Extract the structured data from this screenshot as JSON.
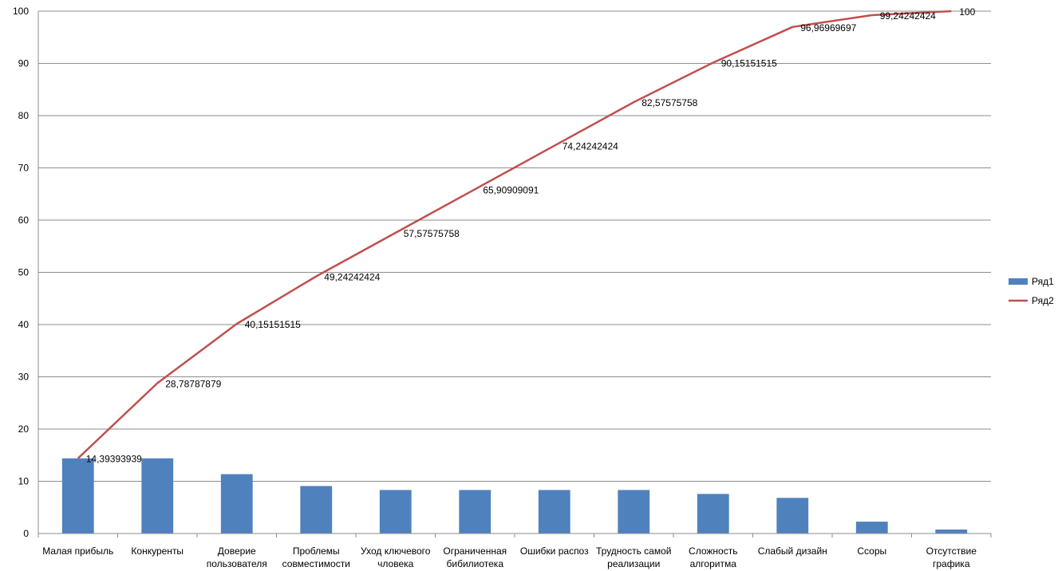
{
  "chart_data": {
    "type": "bar",
    "categories": [
      [
        "Малая прибыль"
      ],
      [
        "Конкуренты"
      ],
      [
        "Доверие",
        "пользователя"
      ],
      [
        "Проблемы",
        "совместимости"
      ],
      [
        "Уход ключевого",
        "чловека"
      ],
      [
        "Ограниченная",
        "бибилиотека"
      ],
      [
        "Ошибки распоз"
      ],
      [
        "Трудность самой",
        "реализации"
      ],
      [
        "Сложность",
        "алгоритма"
      ],
      [
        "Слабый дизайн"
      ],
      [
        "Ссоры"
      ],
      [
        "Отсутствие",
        "графика"
      ]
    ],
    "series": [
      {
        "name": "Ряд1",
        "type": "bar",
        "color": "#4f81bd",
        "values": [
          14.39,
          14.39,
          11.36,
          9.09,
          8.33,
          8.33,
          8.33,
          8.33,
          7.58,
          6.82,
          2.27,
          0.76
        ]
      },
      {
        "name": "Ряд2",
        "type": "line",
        "color": "#c0504d",
        "values": [
          14.39393939,
          28.78787879,
          40.15151515,
          49.24242424,
          57.57575758,
          65.90909091,
          74.24242424,
          82.57575758,
          90.15151515,
          96.96969697,
          99.24242424,
          100
        ],
        "labels": [
          "14,39393939",
          "28,78787879",
          "40,15151515",
          "49,24242424",
          "57,57575758",
          "65,90909091",
          "74,24242424",
          "82,57575758",
          "90,15151515",
          "96,96969697",
          "99,24242424",
          "100"
        ]
      }
    ],
    "ylim": [
      0,
      100
    ],
    "yticks": [
      0,
      10,
      20,
      30,
      40,
      50,
      60,
      70,
      80,
      90,
      100
    ],
    "grid": true,
    "legend": "right",
    "title": "",
    "xlabel": "",
    "ylabel": ""
  }
}
